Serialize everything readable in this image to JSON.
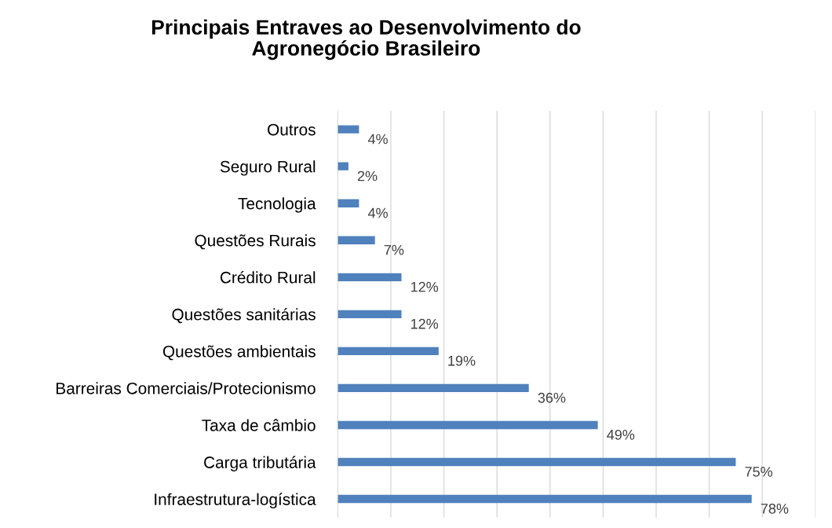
{
  "chart_data": {
    "type": "bar",
    "orientation": "horizontal",
    "title": "Principais Entraves ao Desenvolvimento do\nAgronegócio Brasileiro",
    "categories": [
      "Outros",
      "Seguro Rural",
      "Tecnologia",
      "Questões Rurais",
      "Crédito Rural",
      "Questões sanitárias",
      "Questões ambientais",
      "Barreiras Comerciais/Protecionismo",
      "Taxa de câmbio",
      "Carga tributária",
      "Infraestrutura-logística"
    ],
    "values": [
      4,
      2,
      4,
      7,
      12,
      12,
      19,
      36,
      49,
      75,
      78
    ],
    "value_labels": [
      "4%",
      "2%",
      "4%",
      "7%",
      "12%",
      "12%",
      "19%",
      "36%",
      "49%",
      "75%",
      "78%"
    ],
    "color": "#4f81bd",
    "xlim": [
      0,
      90
    ],
    "xticks": [
      {
        "value": 0,
        "label": null
      },
      {
        "value": 10,
        "label": null
      },
      {
        "value": 20,
        "label": null
      },
      {
        "value": 30,
        "label": null
      },
      {
        "value": 40,
        "label": null
      },
      {
        "value": 50,
        "label": null
      },
      {
        "value": 60,
        "label": null
      },
      {
        "value": 70,
        "label": null
      },
      {
        "value": 80,
        "label": null
      },
      {
        "value": 90,
        "label": null
      }
    ],
    "grid": "x",
    "tick_labels": "y",
    "legend": false
  }
}
